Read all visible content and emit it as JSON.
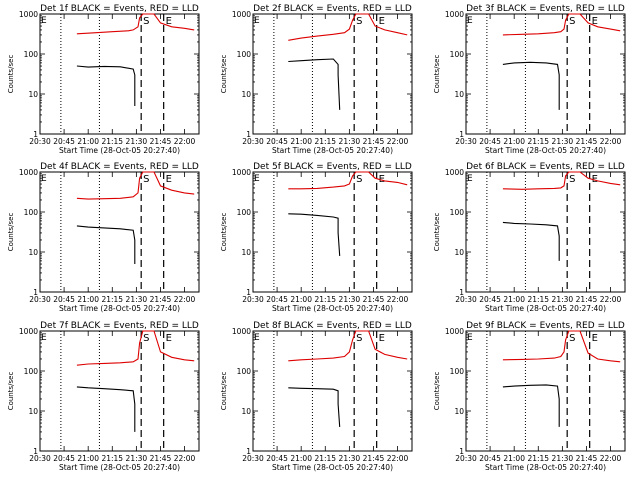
{
  "chart_data": [
    {
      "type": "line",
      "title": "Det 1f BLACK = Events, RED = LLD",
      "xlabel": "Start Time (28-Oct-05 20:27:40)",
      "ylabel": "Counts/sec",
      "x_ticks": [
        "20:30",
        "20:45",
        "21:00",
        "21:15",
        "21:30",
        "21:45",
        "22:00"
      ],
      "y_ticks": [
        "1",
        "10",
        "100",
        "1000"
      ],
      "ylog": true,
      "ylim": [
        1,
        1000
      ],
      "xlim": [
        "20:30",
        "22:09"
      ],
      "markers": {
        "S": "21:33",
        "E": "21:47"
      },
      "dotted_lines": [
        "20:43",
        "21:07"
      ],
      "series": [
        {
          "name": "Events",
          "color": "#000000",
          "x": [
            "20:53",
            "21:00",
            "21:10",
            "21:20",
            "21:28",
            "21:29",
            "21:29"
          ],
          "y": [
            50,
            47,
            49,
            48,
            42,
            30,
            5
          ]
        },
        {
          "name": "LLD",
          "color": "#dd0000",
          "x": [
            "20:53",
            "21:05",
            "21:15",
            "21:25",
            "21:28",
            "21:31",
            "21:32",
            "21:34",
            "21:39",
            "21:41",
            "21:45",
            "21:52",
            "22:00",
            "22:06"
          ],
          "y": [
            320,
            340,
            360,
            380,
            400,
            480,
            800,
            1000,
            1000,
            1000,
            600,
            480,
            440,
            400
          ]
        }
      ]
    },
    {
      "type": "line",
      "title": "Det 2f BLACK = Events, RED = LLD",
      "xlabel": "Start Time (28-Oct-05 20:27:40)",
      "ylabel": "Counts/sec",
      "x_ticks": [
        "20:30",
        "20:45",
        "21:00",
        "21:15",
        "21:30",
        "21:45",
        "22:00"
      ],
      "y_ticks": [
        "1",
        "10",
        "100",
        "1000"
      ],
      "ylog": true,
      "ylim": [
        1,
        1000
      ],
      "xlim": [
        "20:30",
        "22:09"
      ],
      "markers": {
        "S": "21:33",
        "E": "21:47"
      },
      "dotted_lines": [
        "20:43",
        "21:07"
      ],
      "series": [
        {
          "name": "Events",
          "color": "#000000",
          "x": [
            "20:52",
            "21:00",
            "21:10",
            "21:20",
            "21:23",
            "21:23",
            "21:24"
          ],
          "y": [
            65,
            68,
            72,
            75,
            55,
            30,
            4
          ]
        },
        {
          "name": "LLD",
          "color": "#dd0000",
          "x": [
            "20:52",
            "21:00",
            "21:10",
            "21:20",
            "21:27",
            "21:30",
            "21:32",
            "21:34",
            "21:39",
            "21:42",
            "21:46",
            "21:52",
            "22:00",
            "22:06"
          ],
          "y": [
            220,
            250,
            280,
            310,
            340,
            420,
            700,
            1000,
            1000,
            1000,
            500,
            400,
            340,
            300
          ]
        }
      ]
    },
    {
      "type": "line",
      "title": "Det 3f BLACK = Events, RED = LLD",
      "xlabel": "Start Time (28-Oct-05 20:27:40)",
      "ylabel": "Counts/sec",
      "x_ticks": [
        "20:30",
        "20:45",
        "21:00",
        "21:15",
        "21:30",
        "21:45",
        "22:00"
      ],
      "y_ticks": [
        "1",
        "10",
        "100",
        "1000"
      ],
      "ylog": true,
      "ylim": [
        1,
        1000
      ],
      "xlim": [
        "20:30",
        "22:09"
      ],
      "markers": {
        "S": "21:33",
        "E": "21:47"
      },
      "dotted_lines": [
        "20:43",
        "21:07"
      ],
      "series": [
        {
          "name": "Events",
          "color": "#000000",
          "x": [
            "20:53",
            "21:00",
            "21:10",
            "21:20",
            "21:27",
            "21:28",
            "21:28"
          ],
          "y": [
            55,
            60,
            62,
            60,
            55,
            30,
            4
          ]
        },
        {
          "name": "LLD",
          "color": "#dd0000",
          "x": [
            "20:53",
            "21:05",
            "21:15",
            "21:25",
            "21:29",
            "21:31",
            "21:32",
            "21:34",
            "21:39",
            "21:41",
            "21:46",
            "21:52",
            "22:00",
            "22:06"
          ],
          "y": [
            300,
            310,
            320,
            340,
            360,
            420,
            700,
            1000,
            1000,
            1000,
            600,
            480,
            420,
            380
          ]
        }
      ]
    },
    {
      "type": "line",
      "title": "Det 4f BLACK = Events, RED = LLD",
      "xlabel": "Start Time (28-Oct-05 20:27:40)",
      "ylabel": "Counts/sec",
      "x_ticks": [
        "20:30",
        "20:45",
        "21:00",
        "21:15",
        "21:30",
        "21:45",
        "22:00"
      ],
      "y_ticks": [
        "1",
        "10",
        "100",
        "1000"
      ],
      "ylog": true,
      "ylim": [
        1,
        1000
      ],
      "xlim": [
        "20:30",
        "22:09"
      ],
      "markers": {
        "S": "21:33",
        "E": "21:47"
      },
      "dotted_lines": [
        "20:43",
        "21:07"
      ],
      "series": [
        {
          "name": "Events",
          "color": "#000000",
          "x": [
            "20:53",
            "21:00",
            "21:10",
            "21:20",
            "21:28",
            "21:29",
            "21:29"
          ],
          "y": [
            45,
            42,
            40,
            38,
            35,
            20,
            5
          ]
        },
        {
          "name": "LLD",
          "color": "#dd0000",
          "x": [
            "20:53",
            "21:00",
            "21:10",
            "21:20",
            "21:28",
            "21:31",
            "21:32",
            "21:34",
            "21:39",
            "21:41",
            "21:45",
            "21:52",
            "22:00",
            "22:06"
          ],
          "y": [
            220,
            210,
            215,
            220,
            240,
            300,
            700,
            1000,
            1000,
            1000,
            450,
            350,
            300,
            280
          ]
        }
      ]
    },
    {
      "type": "line",
      "title": "Det 5f BLACK = Events, RED = LLD",
      "xlabel": "Start Time (28-Oct-05 20:27:40)",
      "ylabel": "Counts/sec",
      "x_ticks": [
        "20:30",
        "20:45",
        "21:00",
        "21:15",
        "21:30",
        "21:45",
        "22:00"
      ],
      "y_ticks": [
        "1",
        "10",
        "100",
        "1000"
      ],
      "ylog": true,
      "ylim": [
        1,
        1000
      ],
      "xlim": [
        "20:30",
        "22:09"
      ],
      "markers": {
        "S": "21:33",
        "E": "21:47"
      },
      "dotted_lines": [
        "20:43",
        "21:07"
      ],
      "series": [
        {
          "name": "Events",
          "color": "#000000",
          "x": [
            "20:52",
            "21:00",
            "21:10",
            "21:20",
            "21:23",
            "21:23",
            "21:24"
          ],
          "y": [
            90,
            88,
            82,
            75,
            70,
            30,
            8
          ]
        },
        {
          "name": "LLD",
          "color": "#dd0000",
          "x": [
            "20:52",
            "21:00",
            "21:10",
            "21:20",
            "21:27",
            "21:30",
            "21:32",
            "21:34",
            "21:39",
            "21:42",
            "21:46",
            "21:52",
            "22:00",
            "22:06"
          ],
          "y": [
            380,
            380,
            390,
            420,
            450,
            500,
            800,
            1000,
            1000,
            1000,
            700,
            600,
            550,
            480
          ]
        }
      ]
    },
    {
      "type": "line",
      "title": "Det 6f BLACK = Events, RED = LLD",
      "xlabel": "Start Time (28-Oct-05 20:27:40)",
      "ylabel": "Counts/sec",
      "x_ticks": [
        "20:30",
        "20:45",
        "21:00",
        "21:15",
        "21:30",
        "21:45",
        "22:00"
      ],
      "y_ticks": [
        "1",
        "10",
        "100",
        "1000"
      ],
      "ylog": true,
      "ylim": [
        1,
        1000
      ],
      "xlim": [
        "20:30",
        "22:09"
      ],
      "markers": {
        "S": "21:33",
        "E": "21:47"
      },
      "dotted_lines": [
        "20:43",
        "21:07"
      ],
      "series": [
        {
          "name": "Events",
          "color": "#000000",
          "x": [
            "20:53",
            "21:00",
            "21:10",
            "21:20",
            "21:27",
            "21:28",
            "21:28"
          ],
          "y": [
            55,
            52,
            50,
            48,
            45,
            25,
            6
          ]
        },
        {
          "name": "LLD",
          "color": "#dd0000",
          "x": [
            "20:53",
            "21:05",
            "21:15",
            "21:25",
            "21:29",
            "21:31",
            "21:32",
            "21:34",
            "21:39",
            "21:41",
            "21:46",
            "21:52",
            "22:00",
            "22:06"
          ],
          "y": [
            380,
            370,
            380,
            390,
            400,
            450,
            800,
            1000,
            1000,
            1000,
            700,
            600,
            520,
            480
          ]
        }
      ]
    },
    {
      "type": "line",
      "title": "Det 7f BLACK = Events, RED = LLD",
      "xlabel": "Start Time (28-Oct-05 20:27:40)",
      "ylabel": "Counts/sec",
      "x_ticks": [
        "20:30",
        "20:45",
        "21:00",
        "21:15",
        "21:30",
        "21:45",
        "22:00"
      ],
      "y_ticks": [
        "1",
        "10",
        "100",
        "1000"
      ],
      "ylog": true,
      "ylim": [
        1,
        1000
      ],
      "xlim": [
        "20:30",
        "22:09"
      ],
      "markers": {
        "S": "21:33",
        "E": "21:47"
      },
      "dotted_lines": [
        "20:43",
        "21:07"
      ],
      "series": [
        {
          "name": "Events",
          "color": "#000000",
          "x": [
            "20:53",
            "21:00",
            "21:10",
            "21:20",
            "21:28",
            "21:29",
            "21:29"
          ],
          "y": [
            40,
            38,
            36,
            34,
            32,
            15,
            3
          ]
        },
        {
          "name": "LLD",
          "color": "#dd0000",
          "x": [
            "20:53",
            "21:00",
            "21:10",
            "21:20",
            "21:28",
            "21:31",
            "21:32",
            "21:34",
            "21:39",
            "21:41",
            "21:45",
            "21:52",
            "22:00",
            "22:06"
          ],
          "y": [
            140,
            150,
            155,
            160,
            170,
            200,
            500,
            1000,
            1000,
            1000,
            300,
            220,
            190,
            180
          ]
        }
      ]
    },
    {
      "type": "line",
      "title": "Det 8f BLACK = Events, RED = LLD",
      "xlabel": "Start Time (28-Oct-05 20:27:40)",
      "ylabel": "Counts/sec",
      "x_ticks": [
        "20:30",
        "20:45",
        "21:00",
        "21:15",
        "21:30",
        "21:45",
        "22:00"
      ],
      "y_ticks": [
        "1",
        "10",
        "100",
        "1000"
      ],
      "ylog": true,
      "ylim": [
        1,
        1000
      ],
      "xlim": [
        "20:30",
        "22:09"
      ],
      "markers": {
        "S": "21:33",
        "E": "21:47"
      },
      "dotted_lines": [
        "20:43",
        "21:07"
      ],
      "series": [
        {
          "name": "Events",
          "color": "#000000",
          "x": [
            "20:52",
            "21:00",
            "21:10",
            "21:20",
            "21:23",
            "21:23",
            "21:24"
          ],
          "y": [
            38,
            37,
            36,
            35,
            32,
            15,
            4
          ]
        },
        {
          "name": "LLD",
          "color": "#dd0000",
          "x": [
            "20:52",
            "21:00",
            "21:10",
            "21:20",
            "21:27",
            "21:30",
            "21:32",
            "21:34",
            "21:39",
            "21:42",
            "21:46",
            "21:52",
            "22:00",
            "22:06"
          ],
          "y": [
            180,
            190,
            200,
            210,
            230,
            300,
            600,
            1000,
            1000,
            1000,
            350,
            260,
            220,
            200
          ]
        }
      ]
    },
    {
      "type": "line",
      "title": "Det 9f BLACK = Events, RED = LLD",
      "xlabel": "Start Time (28-Oct-05 20:27:40)",
      "ylabel": "Counts/sec",
      "x_ticks": [
        "20:30",
        "20:45",
        "21:00",
        "21:15",
        "21:30",
        "21:45",
        "22:00"
      ],
      "y_ticks": [
        "1",
        "10",
        "100",
        "1000"
      ],
      "ylog": true,
      "ylim": [
        1,
        1000
      ],
      "xlim": [
        "20:30",
        "22:09"
      ],
      "markers": {
        "S": "21:33",
        "E": "21:47"
      },
      "dotted_lines": [
        "20:43",
        "21:07"
      ],
      "series": [
        {
          "name": "Events",
          "color": "#000000",
          "x": [
            "20:53",
            "21:00",
            "21:10",
            "21:20",
            "21:27",
            "21:28",
            "21:28"
          ],
          "y": [
            40,
            42,
            44,
            45,
            42,
            20,
            4
          ]
        },
        {
          "name": "LLD",
          "color": "#dd0000",
          "x": [
            "20:53",
            "21:05",
            "21:15",
            "21:25",
            "21:29",
            "21:31",
            "21:32",
            "21:34",
            "21:39",
            "21:41",
            "21:46",
            "21:52",
            "22:00",
            "22:06"
          ],
          "y": [
            190,
            195,
            200,
            210,
            230,
            300,
            600,
            1000,
            1000,
            1000,
            280,
            200,
            180,
            170
          ]
        }
      ]
    }
  ]
}
